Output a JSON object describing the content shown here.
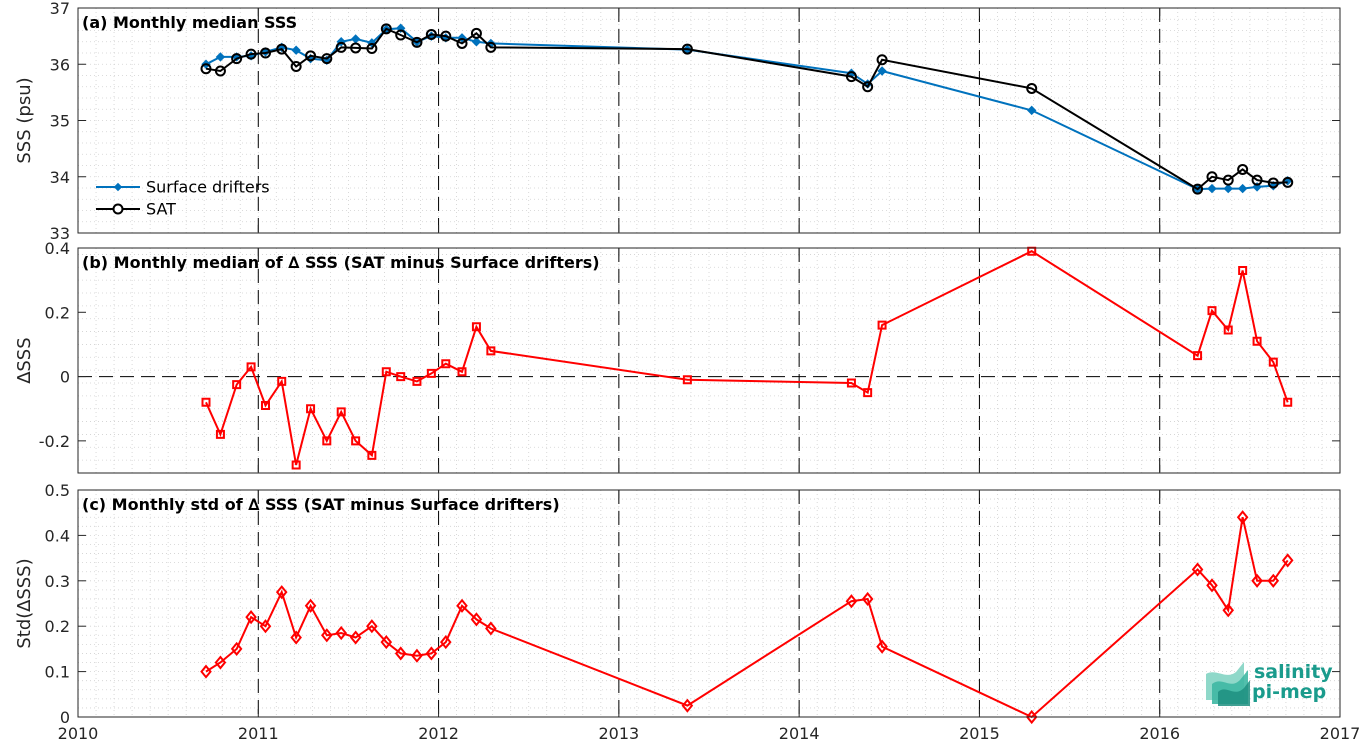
{
  "chart_data": [
    {
      "type": "line",
      "title": "(a) Monthly median SSS",
      "xlabel": "",
      "ylabel": "SSS (psu)",
      "xlim": [
        2010,
        2017
      ],
      "ylim": [
        33,
        37
      ],
      "yticks": [
        33,
        34,
        35,
        36,
        37
      ],
      "grid": "dotted minor grid, dashed vertical lines at each year",
      "legend_position": "bottom-left",
      "series": [
        {
          "name": "Surface drifters",
          "color": "#0072bd",
          "marker": "diamond-filled",
          "x": [
            2010.71,
            2010.79,
            2010.88,
            2010.96,
            2011.04,
            2011.13,
            2011.21,
            2011.29,
            2011.38,
            2011.46,
            2011.54,
            2011.63,
            2011.71,
            2011.79,
            2011.88,
            2011.96,
            2012.04,
            2012.13,
            2012.21,
            2012.29,
            2013.38,
            2014.29,
            2014.38,
            2014.46,
            2015.29,
            2016.21,
            2016.29,
            2016.38,
            2016.46,
            2016.54,
            2016.63,
            2016.71
          ],
          "y": [
            36.0,
            36.13,
            36.13,
            36.15,
            36.22,
            36.3,
            36.25,
            36.1,
            36.07,
            36.4,
            36.45,
            36.38,
            36.62,
            36.64,
            36.4,
            36.5,
            36.47,
            36.47,
            36.4,
            36.37,
            36.26,
            35.84,
            35.65,
            35.88,
            35.18,
            33.78,
            33.79,
            33.79,
            33.79,
            33.82,
            33.84,
            33.93
          ]
        },
        {
          "name": "SAT",
          "color": "#000000",
          "marker": "circle-open",
          "x": [
            2010.71,
            2010.79,
            2010.88,
            2010.96,
            2011.04,
            2011.13,
            2011.21,
            2011.29,
            2011.38,
            2011.46,
            2011.54,
            2011.63,
            2011.71,
            2011.79,
            2011.88,
            2011.96,
            2012.04,
            2012.13,
            2012.21,
            2012.29,
            2013.38,
            2014.29,
            2014.38,
            2014.46,
            2015.29,
            2016.21,
            2016.29,
            2016.38,
            2016.46,
            2016.54,
            2016.63,
            2016.71
          ],
          "y": [
            35.92,
            35.88,
            36.1,
            36.18,
            36.2,
            36.27,
            35.96,
            36.15,
            36.1,
            36.3,
            36.29,
            36.28,
            36.63,
            36.52,
            36.39,
            36.53,
            36.5,
            36.37,
            36.55,
            36.3,
            36.27,
            35.78,
            35.6,
            36.08,
            35.57,
            33.78,
            34.0,
            33.94,
            34.13,
            33.94,
            33.89,
            33.9
          ]
        }
      ]
    },
    {
      "type": "line",
      "title": "(b) Monthly median of ∆ SSS (SAT minus Surface drifters)",
      "xlabel": "",
      "ylabel": "∆SSS",
      "xlim": [
        2010,
        2017
      ],
      "ylim": [
        -0.3,
        0.4
      ],
      "yticks": [
        -0.2,
        0,
        0.2,
        0.4
      ],
      "yticklabels": [
        "-0.2",
        "0",
        "0.2",
        "0.4"
      ],
      "zero_line": "dashed",
      "series": [
        {
          "name": "",
          "color": "#ff0000",
          "marker": "square-open",
          "x": [
            2010.71,
            2010.79,
            2010.88,
            2010.96,
            2011.04,
            2011.13,
            2011.21,
            2011.29,
            2011.38,
            2011.46,
            2011.54,
            2011.63,
            2011.71,
            2011.79,
            2011.88,
            2011.96,
            2012.04,
            2012.13,
            2012.21,
            2012.29,
            2013.38,
            2014.29,
            2014.38,
            2014.46,
            2015.29,
            2016.21,
            2016.29,
            2016.38,
            2016.46,
            2016.54,
            2016.63,
            2016.71
          ],
          "y": [
            -0.08,
            -0.18,
            -0.025,
            0.03,
            -0.09,
            -0.015,
            -0.275,
            -0.1,
            -0.2,
            -0.11,
            -0.2,
            -0.245,
            0.015,
            0.0,
            -0.015,
            0.01,
            0.04,
            0.015,
            0.155,
            0.08,
            -0.01,
            -0.02,
            -0.05,
            0.16,
            0.39,
            0.065,
            0.205,
            0.145,
            0.33,
            0.11,
            0.045,
            -0.08
          ]
        }
      ]
    },
    {
      "type": "line",
      "title": "(c) Monthly std of ∆ SSS (SAT minus Surface drifters)",
      "xlabel": "",
      "ylabel": "Std(∆SSS)",
      "xlim": [
        2010,
        2017
      ],
      "ylim": [
        0,
        0.5
      ],
      "yticks": [
        0,
        0.1,
        0.2,
        0.3,
        0.4,
        0.5
      ],
      "xticks": [
        2010,
        2011,
        2012,
        2013,
        2014,
        2015,
        2016,
        2017
      ],
      "series": [
        {
          "name": "",
          "color": "#ff0000",
          "marker": "diamond-open",
          "x": [
            2010.71,
            2010.79,
            2010.88,
            2010.96,
            2011.04,
            2011.13,
            2011.21,
            2011.29,
            2011.38,
            2011.46,
            2011.54,
            2011.63,
            2011.71,
            2011.79,
            2011.88,
            2011.96,
            2012.04,
            2012.13,
            2012.21,
            2012.29,
            2013.38,
            2014.29,
            2014.38,
            2014.46,
            2015.29,
            2016.21,
            2016.29,
            2016.38,
            2016.46,
            2016.54,
            2016.63,
            2016.71
          ],
          "y": [
            0.1,
            0.12,
            0.15,
            0.22,
            0.2,
            0.275,
            0.175,
            0.245,
            0.18,
            0.185,
            0.175,
            0.2,
            0.165,
            0.14,
            0.135,
            0.14,
            0.165,
            0.245,
            0.215,
            0.195,
            0.025,
            0.255,
            0.26,
            0.155,
            0.0,
            0.325,
            0.29,
            0.235,
            0.44,
            0.3,
            0.3,
            0.345
          ]
        }
      ]
    }
  ],
  "logo": {
    "line1": "salinity",
    "line2": "pi-mep"
  }
}
